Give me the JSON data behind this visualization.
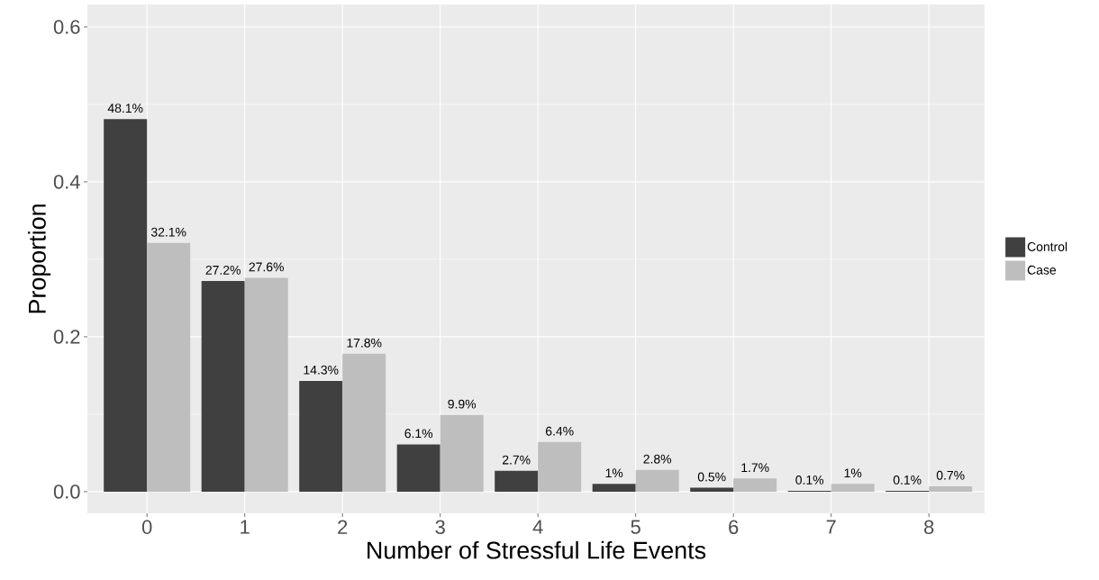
{
  "chart_data": {
    "type": "bar",
    "xlabel": "Number of Stressful Life Events",
    "ylabel": "Proportion",
    "categories": [
      "0",
      "1",
      "2",
      "3",
      "4",
      "5",
      "6",
      "7",
      "8"
    ],
    "series": [
      {
        "name": "Control",
        "color": "#404040",
        "values": [
          0.481,
          0.272,
          0.143,
          0.061,
          0.027,
          0.01,
          0.005,
          0.001,
          0.001
        ],
        "value_labels": [
          "48.1%",
          "27.2%",
          "14.3%",
          "6.1%",
          "2.7%",
          "1%",
          "0.5%",
          "0.1%",
          "0.1%"
        ]
      },
      {
        "name": "Case",
        "color": "#bebebe",
        "values": [
          0.321,
          0.276,
          0.178,
          0.099,
          0.064,
          0.028,
          0.017,
          0.01,
          0.007
        ],
        "value_labels": [
          "32.1%",
          "27.6%",
          "17.8%",
          "9.9%",
          "6.4%",
          "2.8%",
          "1.7%",
          "1%",
          "0.7%"
        ]
      }
    ],
    "ylim": [
      -0.028,
      0.629
    ],
    "yticks": [
      {
        "value": 0,
        "label": "0.0"
      },
      {
        "value": 0.2,
        "label": "0.2"
      },
      {
        "value": 0.4,
        "label": "0.4"
      },
      {
        "value": 0.6,
        "label": "0.6"
      }
    ],
    "grid": true,
    "legend": "right"
  }
}
